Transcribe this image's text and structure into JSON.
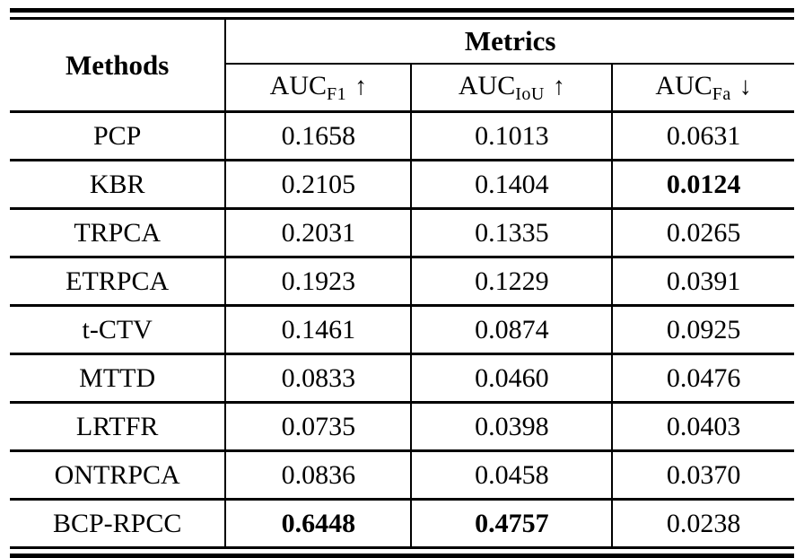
{
  "page": {
    "background": "#ffffff",
    "rule_color": "#000000"
  },
  "table": {
    "header": {
      "methods_label": "Methods",
      "metrics_label": "Metrics",
      "metric_columns": [
        {
          "base": "AUC",
          "subscript": "F1",
          "arrow": "↑"
        },
        {
          "base": "AUC",
          "subscript": "IoU",
          "arrow": "↑"
        },
        {
          "base": "AUC",
          "subscript": "Fa",
          "arrow": "↓"
        }
      ]
    },
    "rows": [
      {
        "method": "PCP",
        "values": [
          {
            "text": "0.1658",
            "bold": false
          },
          {
            "text": "0.1013",
            "bold": false
          },
          {
            "text": "0.0631",
            "bold": false
          }
        ]
      },
      {
        "method": "KBR",
        "values": [
          {
            "text": "0.2105",
            "bold": false
          },
          {
            "text": "0.1404",
            "bold": false
          },
          {
            "text": "0.0124",
            "bold": true
          }
        ]
      },
      {
        "method": "TRPCA",
        "values": [
          {
            "text": "0.2031",
            "bold": false
          },
          {
            "text": "0.1335",
            "bold": false
          },
          {
            "text": "0.0265",
            "bold": false
          }
        ]
      },
      {
        "method": "ETRPCA",
        "values": [
          {
            "text": "0.1923",
            "bold": false
          },
          {
            "text": "0.1229",
            "bold": false
          },
          {
            "text": "0.0391",
            "bold": false
          }
        ]
      },
      {
        "method": "t-CTV",
        "values": [
          {
            "text": "0.1461",
            "bold": false
          },
          {
            "text": "0.0874",
            "bold": false
          },
          {
            "text": "0.0925",
            "bold": false
          }
        ]
      },
      {
        "method": "MTTD",
        "values": [
          {
            "text": "0.0833",
            "bold": false
          },
          {
            "text": "0.0460",
            "bold": false
          },
          {
            "text": "0.0476",
            "bold": false
          }
        ]
      },
      {
        "method": "LRTFR",
        "values": [
          {
            "text": "0.0735",
            "bold": false
          },
          {
            "text": "0.0398",
            "bold": false
          },
          {
            "text": "0.0403",
            "bold": false
          }
        ]
      },
      {
        "method": "ONTRPCA",
        "values": [
          {
            "text": "0.0836",
            "bold": false
          },
          {
            "text": "0.0458",
            "bold": false
          },
          {
            "text": "0.0370",
            "bold": false
          }
        ]
      },
      {
        "method": "BCP-RPCC",
        "values": [
          {
            "text": "0.6448",
            "bold": true
          },
          {
            "text": "0.4757",
            "bold": true
          },
          {
            "text": "0.0238",
            "bold": false
          }
        ]
      }
    ]
  },
  "chart_data": {
    "type": "table",
    "columns": [
      "Methods",
      "AUC_F1 ↑",
      "AUC_IoU ↑",
      "AUC_Fa ↓"
    ],
    "rows": [
      [
        "PCP",
        0.1658,
        0.1013,
        0.0631
      ],
      [
        "KBR",
        0.2105,
        0.1404,
        0.0124
      ],
      [
        "TRPCA",
        0.2031,
        0.1335,
        0.0265
      ],
      [
        "ETRPCA",
        0.1923,
        0.1229,
        0.0391
      ],
      [
        "t-CTV",
        0.1461,
        0.0874,
        0.0925
      ],
      [
        "MTTD",
        0.0833,
        0.046,
        0.0476
      ],
      [
        "LRTFR",
        0.0735,
        0.0398,
        0.0403
      ],
      [
        "ONTRPCA",
        0.0836,
        0.0458,
        0.037
      ],
      [
        "BCP-RPCC",
        0.6448,
        0.4757,
        0.0238
      ]
    ],
    "bold_cells": [
      [
        "KBR",
        "AUC_Fa"
      ],
      [
        "BCP-RPCC",
        "AUC_F1"
      ],
      [
        "BCP-RPCC",
        "AUC_IoU"
      ]
    ]
  }
}
